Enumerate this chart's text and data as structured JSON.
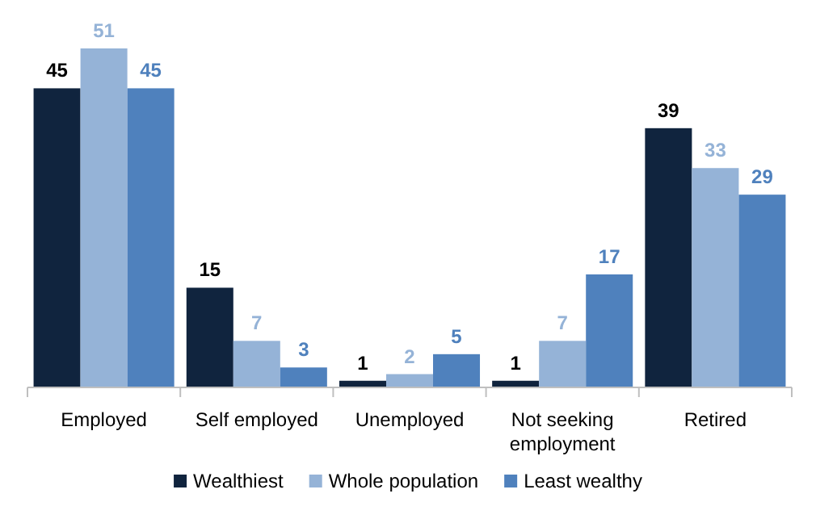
{
  "chart_data": {
    "type": "bar",
    "categories": [
      "Employed",
      "Self employed",
      "Unemployed",
      "Not seeking employment",
      "Retired"
    ],
    "series": [
      {
        "name": "Wealthiest",
        "color": "#10243e",
        "values": [
          45,
          15,
          1,
          1,
          39
        ]
      },
      {
        "name": "Whole population",
        "color": "#95b3d7",
        "values": [
          51,
          7,
          2,
          7,
          33
        ]
      },
      {
        "name": "Least wealthy",
        "color": "#4f81bd",
        "values": [
          45,
          3,
          5,
          17,
          29
        ]
      }
    ],
    "data_labels": true,
    "legend": "bottom"
  }
}
